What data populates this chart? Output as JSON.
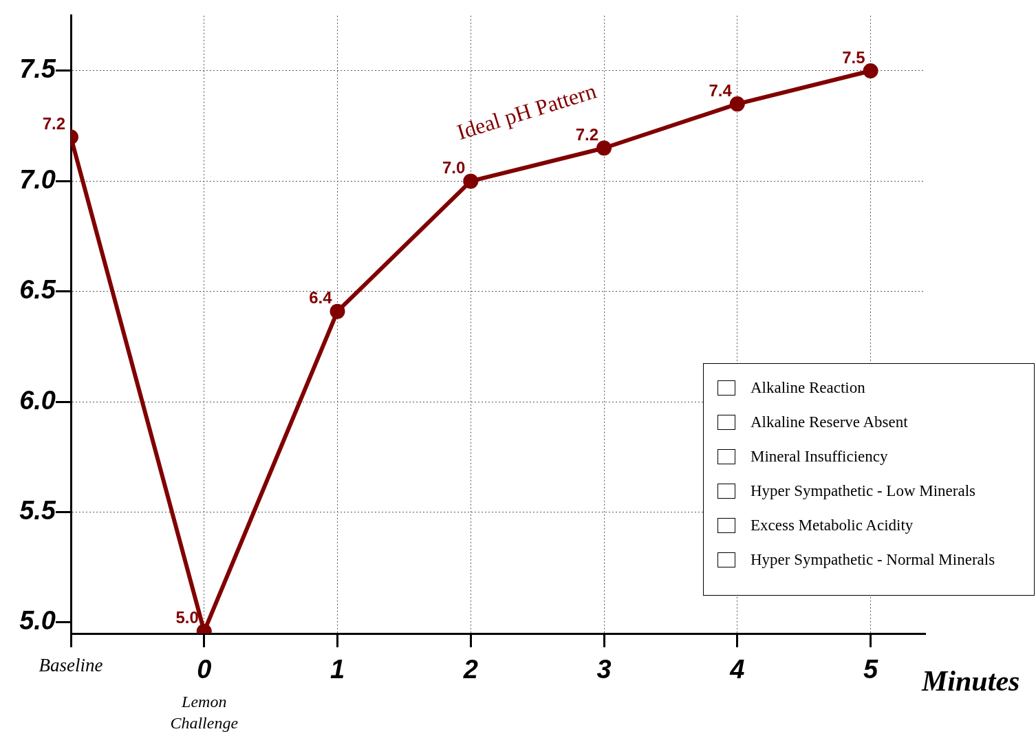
{
  "chart_data": {
    "type": "line",
    "xlabel": "Minutes",
    "categories": [
      "Baseline",
      "0",
      "1",
      "2",
      "3",
      "4",
      "5"
    ],
    "series": [
      {
        "color": "#800000",
        "values": [
          7.2,
          4.96,
          6.41,
          7.0,
          7.15,
          7.35,
          7.5
        ],
        "value_labels": [
          "7.2",
          "5.0",
          "6.4",
          "7.0",
          "7.2",
          "7.4",
          "7.5"
        ]
      }
    ],
    "ylim": [
      4.95,
      7.75
    ],
    "yticks": [
      {
        "value": 5.0,
        "label": "5.0"
      },
      {
        "value": 5.5,
        "label": "5.5"
      },
      {
        "value": 6.0,
        "label": "6.0"
      },
      {
        "value": 6.5,
        "label": "6.5"
      },
      {
        "value": 7.0,
        "label": "7.0"
      },
      {
        "value": 7.5,
        "label": "7.5"
      }
    ],
    "grid": true,
    "legend": false,
    "marker": "circle",
    "line_style": "solid",
    "annotations": [
      "Ideal pH Pattern",
      "Lemon Challenge",
      "Alkaline Reaction",
      "Alkaline Reserve Absent",
      "Mineral Insufficiency",
      "Hyper Sympathetic - Low Minerals",
      "Excess Metabolic Acidity",
      "Hyper Sympathetic - Normal Minerals"
    ]
  }
}
